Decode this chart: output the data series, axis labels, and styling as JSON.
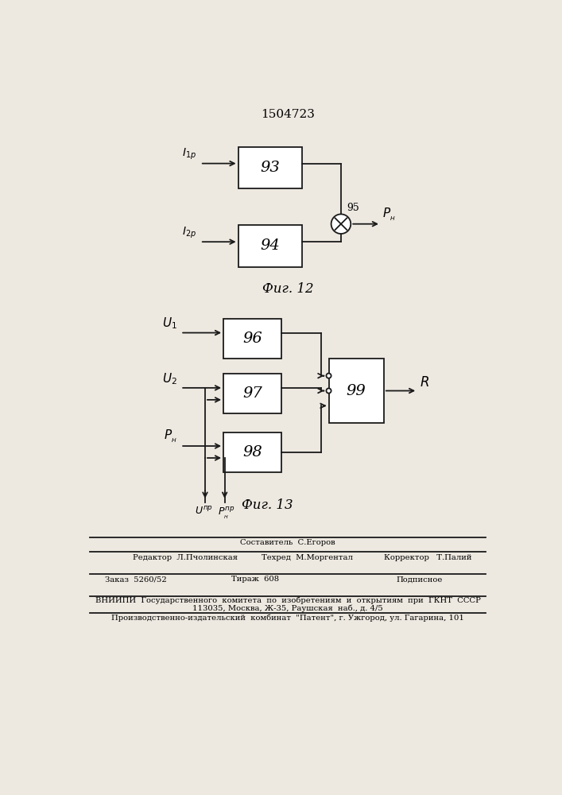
{
  "title": "1504723",
  "fig12_label": "Фиг. 12",
  "fig13_label": "Фиг. 13",
  "bg_color": "#ede8e0",
  "line_color": "#1a1a1a",
  "footer": {
    "line1_left": "Редактор  Л.Пчолинская",
    "line1_center_top": "Составитель  С.Егоров",
    "line1_center": "Техред  М.Моргентал",
    "line1_right": "Корректор   Т.Палий",
    "line2a": "Заказ  5260/52",
    "line2b": "Тираж  608",
    "line2c": "Подписное",
    "line3": "ВНИИПИ  Государственного  комитета  по  изобретениям  и  открытиям  при  ГКНТ  СССР",
    "line4": "113035, Москва, Ж-35, Раушская  наб., д. 4/5",
    "line5": "Производственно-издательский  комбинат  \"Патент\", г. Ужгород, ул. Гагарина, 101"
  }
}
